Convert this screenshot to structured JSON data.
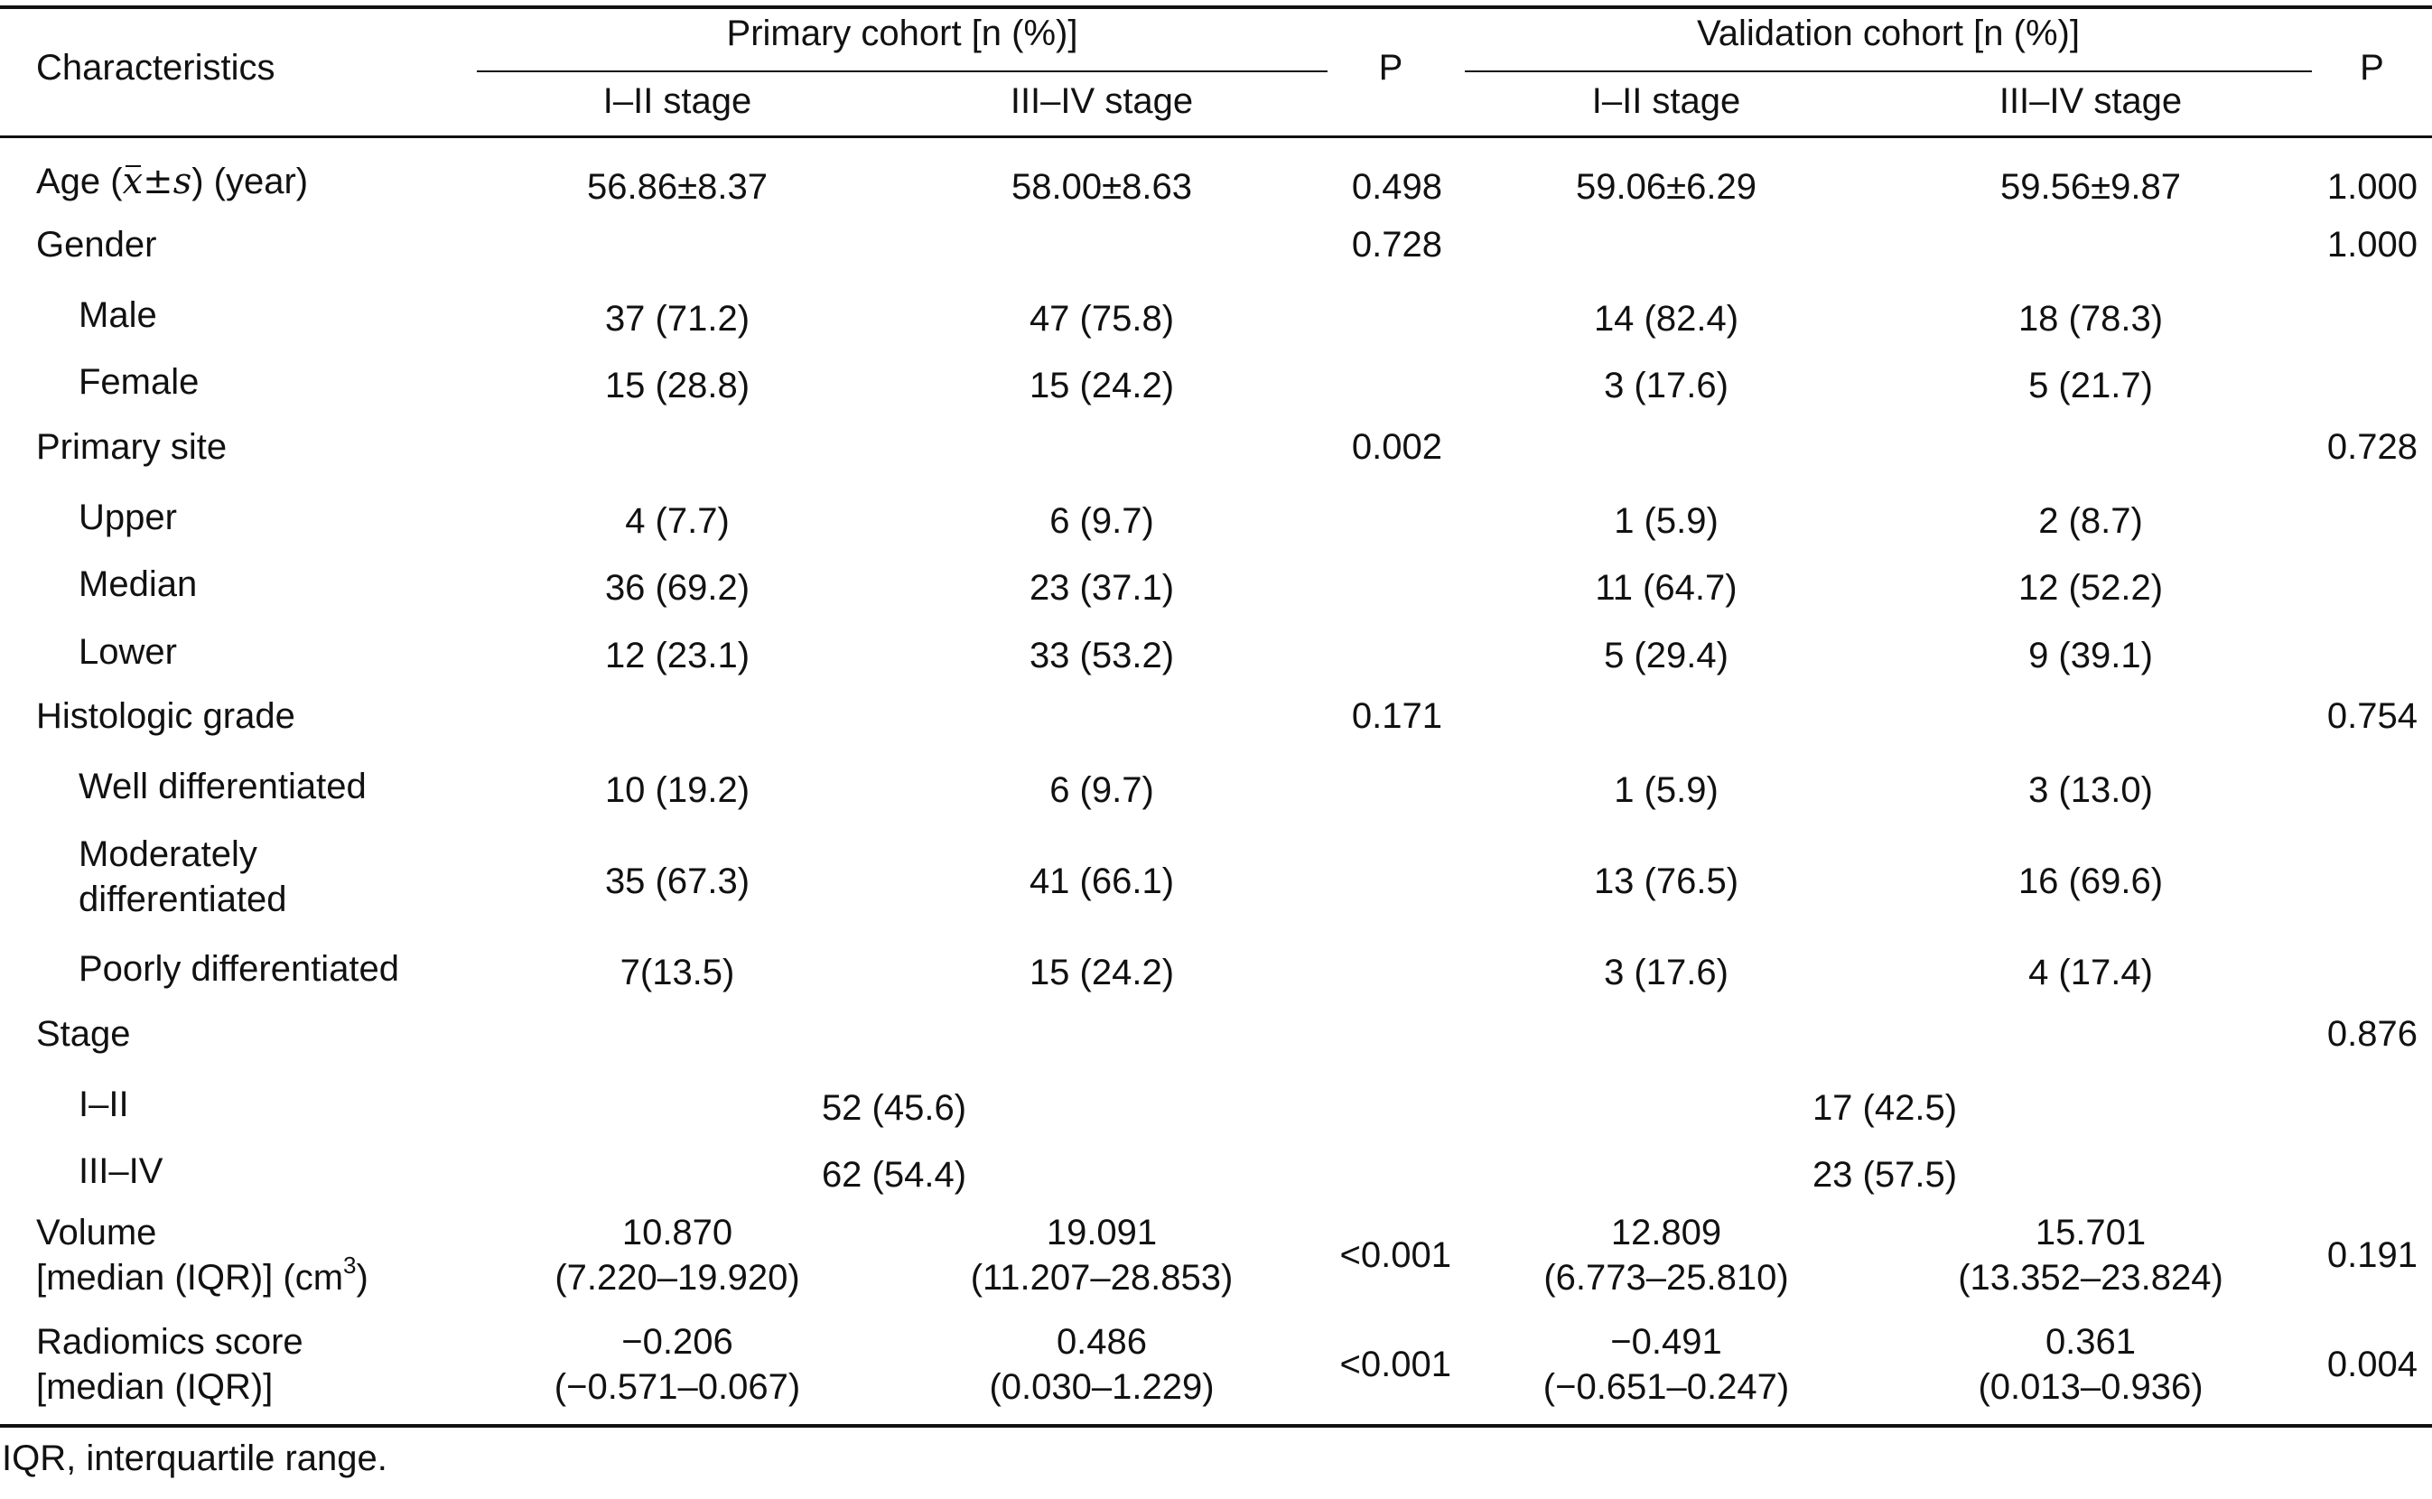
{
  "table": {
    "header": {
      "characteristics": "Characteristics",
      "primary_cohort": "Primary cohort [n (%)]",
      "validation_cohort": "Validation cohort [n (%)]",
      "p": "P",
      "stage_i_ii": "I–II stage",
      "stage_iii_iv": "III–IV stage"
    },
    "age": {
      "label_prefix": "Age (",
      "label_x": "x",
      "label_pm": "±",
      "label_s": "s",
      "label_suffix": ") (year)",
      "primary_i_ii": "56.86±8.37",
      "primary_iii_iv": "58.00±8.63",
      "primary_p": "0.498",
      "validation_i_ii": "59.06±6.29",
      "validation_iii_iv": "59.56±9.87",
      "validation_p": "1.000"
    },
    "gender": {
      "label": "Gender",
      "primary_p": "0.728",
      "validation_p": "1.000",
      "rows": [
        {
          "label": "Male",
          "p1": "37 (71.2)",
          "p2": "47 (75.8)",
          "v1": "14 (82.4)",
          "v2": "18 (78.3)"
        },
        {
          "label": "Female",
          "p1": "15 (28.8)",
          "p2": "15 (24.2)",
          "v1": "3 (17.6)",
          "v2": "5 (21.7)"
        }
      ]
    },
    "primary_site": {
      "label": "Primary site",
      "primary_p": "0.002",
      "validation_p": "0.728",
      "rows": [
        {
          "label": "Upper",
          "p1": "4 (7.7)",
          "p2": "6 (9.7)",
          "v1": "1 (5.9)",
          "v2": "2 (8.7)"
        },
        {
          "label": "Median",
          "p1": "36 (69.2)",
          "p2": "23 (37.1)",
          "v1": "11 (64.7)",
          "v2": "12 (52.2)"
        },
        {
          "label": "Lower",
          "p1": "12 (23.1)",
          "p2": "33 (53.2)",
          "v1": "5 (29.4)",
          "v2": "9 (39.1)"
        }
      ]
    },
    "histologic_grade": {
      "label": "Histologic grade",
      "primary_p": "0.171",
      "validation_p": "0.754",
      "rows": [
        {
          "label": "Well differentiated",
          "p1": "10 (19.2)",
          "p2": "6 (9.7)",
          "v1": "1 (5.9)",
          "v2": "3 (13.0)"
        },
        {
          "label_line1": "Moderately",
          "label_line2": "differentiated",
          "p1": "35 (67.3)",
          "p2": "41 (66.1)",
          "v1": "13 (76.5)",
          "v2": "16 (69.6)"
        },
        {
          "label": "Poorly differentiated",
          "p1": "7(13.5)",
          "p2": "15 (24.2)",
          "v1": "3 (17.6)",
          "v2": "4 (17.4)"
        }
      ]
    },
    "stage": {
      "label": "Stage",
      "validation_p": "0.876",
      "rows": [
        {
          "label": "I–II",
          "primary": "52 (45.6)",
          "validation": "17 (42.5)"
        },
        {
          "label": "III–IV",
          "primary": "62 (54.4)",
          "validation": "23 (57.5)"
        }
      ]
    },
    "volume": {
      "label_line1": "Volume",
      "label_line2_prefix": "[median (IQR)] (cm",
      "label_sup": "3",
      "label_line2_suffix": ")",
      "p1_median": "10.870",
      "p1_iqr": "(7.220–19.920)",
      "p2_median": "19.091",
      "p2_iqr": "(11.207–28.853)",
      "primary_p": "<0.001",
      "v1_median": "12.809",
      "v1_iqr": "(6.773–25.810)",
      "v2_median": "15.701",
      "v2_iqr": "(13.352–23.824)",
      "validation_p": "0.191"
    },
    "radiomics": {
      "label_line1": "Radiomics score",
      "label_line2": "[median (IQR)]",
      "p1_median": "−0.206",
      "p1_iqr": "(−0.571–0.067)",
      "p2_median": "0.486",
      "p2_iqr": "(0.030–1.229)",
      "primary_p": "<0.001",
      "v1_median": "−0.491",
      "v1_iqr": "(−0.651–0.247)",
      "v2_median": "0.361",
      "v2_iqr": "(0.013–0.936)",
      "validation_p": "0.004"
    },
    "footnote": "IQR, interquartile range."
  }
}
